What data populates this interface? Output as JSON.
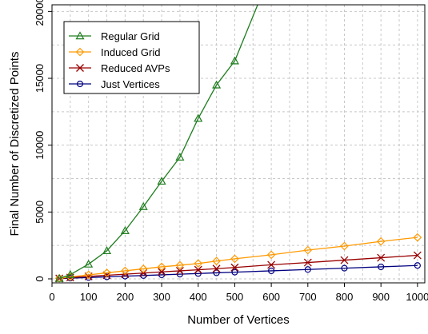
{
  "chart_data": {
    "type": "line",
    "title": "",
    "xlabel": "Number of Vertices",
    "ylabel": "Final Number of Discretized Points",
    "xlim": [
      0,
      1020
    ],
    "ylim": [
      -300,
      20500
    ],
    "xticks": [
      0,
      100,
      200,
      300,
      400,
      500,
      600,
      700,
      800,
      900,
      1000
    ],
    "yticks": [
      0,
      5000,
      10000,
      15000,
      20000
    ],
    "grid": true,
    "legend_position": "top-left",
    "series": [
      {
        "name": "Regular Grid",
        "color": "#1e7d1e",
        "marker": "triangle",
        "x": [
          20,
          50,
          100,
          150,
          200,
          250,
          300,
          350,
          400,
          450,
          500,
          600
        ],
        "y": [
          30,
          320,
          1100,
          2100,
          3600,
          5400,
          7300,
          9100,
          12000,
          14500,
          16300,
          23000
        ]
      },
      {
        "name": "Induced Grid",
        "color": "#ff9900",
        "marker": "diamond",
        "x": [
          20,
          50,
          100,
          150,
          200,
          250,
          300,
          350,
          400,
          450,
          500,
          600,
          700,
          800,
          900,
          1000
        ],
        "y": [
          40,
          150,
          300,
          450,
          600,
          750,
          900,
          1020,
          1150,
          1330,
          1500,
          1800,
          2150,
          2450,
          2800,
          3100
        ]
      },
      {
        "name": "Reduced AVPs",
        "color": "#990000",
        "marker": "x",
        "x": [
          20,
          50,
          100,
          150,
          200,
          250,
          300,
          350,
          400,
          450,
          500,
          600,
          700,
          800,
          900,
          1000
        ],
        "y": [
          30,
          100,
          180,
          270,
          350,
          430,
          520,
          600,
          680,
          760,
          850,
          1050,
          1220,
          1400,
          1580,
          1760
        ]
      },
      {
        "name": "Just Vertices",
        "color": "#000080",
        "marker": "circle",
        "x": [
          20,
          50,
          100,
          150,
          200,
          250,
          300,
          350,
          400,
          450,
          500,
          600,
          700,
          800,
          900,
          1000
        ],
        "y": [
          20,
          50,
          100,
          150,
          200,
          250,
          300,
          350,
          400,
          450,
          500,
          600,
          700,
          800,
          900,
          1000
        ]
      }
    ]
  }
}
